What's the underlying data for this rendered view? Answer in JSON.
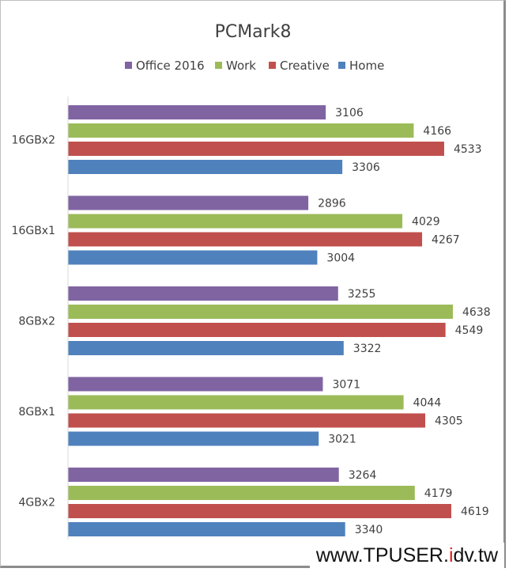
{
  "chart_data": {
    "type": "bar",
    "orientation": "horizontal",
    "title": "PCMark8",
    "categories": [
      "16GBx2",
      "16GBx1",
      "8GBx2",
      "8GBx1",
      "4GBx2"
    ],
    "series": [
      {
        "name": "Office 2016",
        "color": "#8064a2",
        "values": [
          3106,
          2896,
          3255,
          3071,
          3264
        ]
      },
      {
        "name": "Work",
        "color": "#9bbb59",
        "values": [
          4166,
          4029,
          4638,
          4044,
          4179
        ]
      },
      {
        "name": "Creative",
        "color": "#c0504d",
        "values": [
          4533,
          4267,
          4549,
          4305,
          4619
        ]
      },
      {
        "name": "Home",
        "color": "#4f81bd",
        "values": [
          3306,
          3004,
          3322,
          3021,
          3340
        ]
      }
    ],
    "xlim": [
      0,
      5000
    ],
    "legend": "top",
    "grid": false,
    "data_labels": true
  },
  "watermark": {
    "pre": "www.TPUSER.",
    "red": "i",
    "post": "dv.tw"
  }
}
